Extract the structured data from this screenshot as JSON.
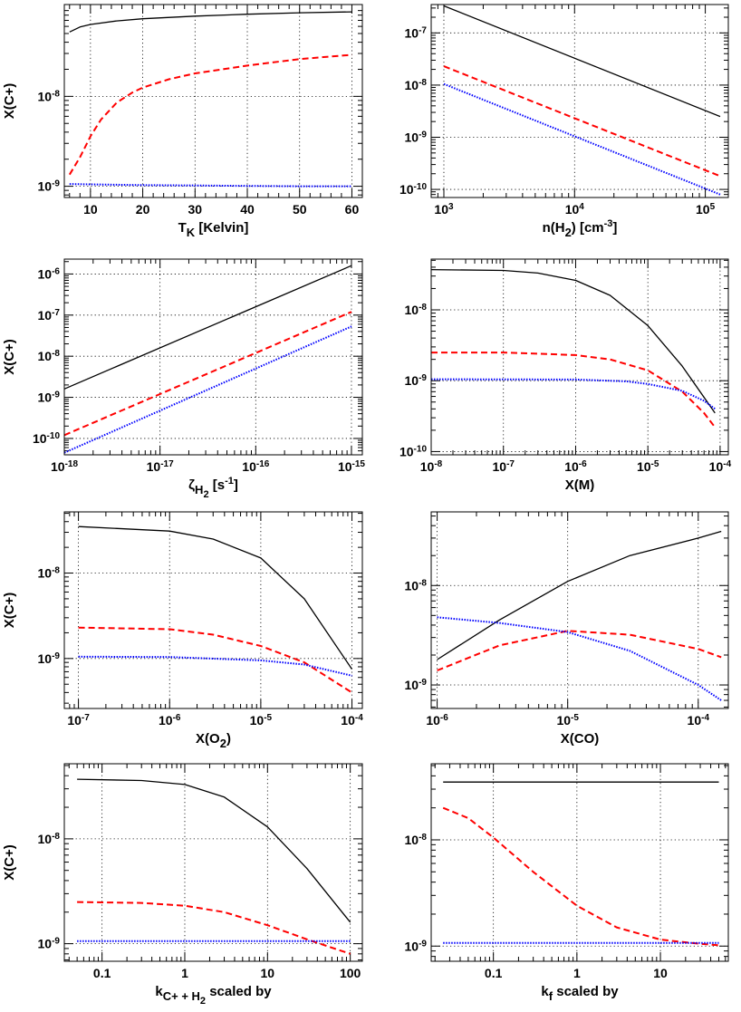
{
  "chart_data": [
    {
      "type": "line",
      "xscale": "linear",
      "yscale": "log",
      "xlim": [
        5,
        62
      ],
      "ylim": [
        7.5e-10,
        1.05e-07
      ],
      "xticks": [
        10,
        20,
        30,
        40,
        50,
        60
      ],
      "xtick_labels": [
        "10",
        "20",
        "30",
        "40",
        "50",
        "60"
      ],
      "yticks": [
        1e-09,
        1e-08
      ],
      "ytick_labels": [
        {
          "b": "10",
          "e": "-9"
        },
        {
          "b": "10",
          "e": "-8"
        }
      ],
      "xlabel": [
        {
          "t": "T"
        },
        {
          "t": "K",
          "sub": true
        },
        {
          "t": " [Kelvin]"
        }
      ],
      "ylabel": "X(C+)",
      "series": [
        {
          "color": "#000000",
          "dash": "solid",
          "x": [
            6,
            8,
            10,
            15,
            20,
            30,
            40,
            50,
            60
          ],
          "y": [
            5.2e-08,
            5.9e-08,
            6.3e-08,
            6.9e-08,
            7.3e-08,
            7.8e-08,
            8.2e-08,
            8.5e-08,
            8.7e-08
          ]
        },
        {
          "color": "#ff0000",
          "dash": "dashed",
          "x": [
            6,
            8,
            10,
            12,
            15,
            18,
            20,
            25,
            30,
            40,
            50,
            60
          ],
          "y": [
            1.35e-09,
            2.1e-09,
            3.6e-09,
            5.5e-09,
            8.5e-09,
            1.1e-08,
            1.25e-08,
            1.55e-08,
            1.8e-08,
            2.2e-08,
            2.6e-08,
            2.9e-08
          ]
        },
        {
          "color": "#0000ff",
          "dash": "dotted",
          "x": [
            6,
            10,
            20,
            30,
            40,
            50,
            60
          ],
          "y": [
            1.06e-09,
            1.05e-09,
            1.03e-09,
            1.02e-09,
            1.01e-09,
            1e-09,
            1e-09
          ]
        }
      ]
    },
    {
      "type": "line",
      "xscale": "log",
      "yscale": "log",
      "xlim": [
        800,
        150000
      ],
      "ylim": [
        7e-11,
        3.5e-07
      ],
      "xticks": [
        1000,
        10000,
        100000
      ],
      "xtick_labels": [
        {
          "b": "10",
          "e": "3"
        },
        {
          "b": "10",
          "e": "4"
        },
        {
          "b": "10",
          "e": "5"
        }
      ],
      "yticks": [
        1e-10,
        1e-09,
        1e-08,
        1e-07
      ],
      "ytick_labels": [
        {
          "b": "10",
          "e": "-10"
        },
        {
          "b": "10",
          "e": "-9"
        },
        {
          "b": "10",
          "e": "-8"
        },
        {
          "b": "10",
          "e": "-7"
        }
      ],
      "xlabel": [
        {
          "t": "n(H"
        },
        {
          "t": "2",
          "sub": true
        },
        {
          "t": ") [cm"
        },
        {
          "t": "-3",
          "sup": true
        },
        {
          "t": "]"
        }
      ],
      "ylabel": "",
      "series": [
        {
          "color": "#000000",
          "dash": "solid",
          "x": [
            1000,
            130000
          ],
          "y": [
            3.3e-07,
            2.5e-09
          ]
        },
        {
          "color": "#ff0000",
          "dash": "dashed",
          "x": [
            1000,
            130000
          ],
          "y": [
            2.3e-08,
            1.8e-10
          ]
        },
        {
          "color": "#0000ff",
          "dash": "dotted",
          "x": [
            1000,
            130000
          ],
          "y": [
            1.05e-08,
            8e-11
          ]
        }
      ]
    },
    {
      "type": "line",
      "xscale": "log",
      "yscale": "log",
      "xlim": [
        1e-18,
        1.3e-15
      ],
      "ylim": [
        4e-11,
        2.3e-06
      ],
      "xticks": [
        1e-18,
        1e-17,
        1e-16,
        1e-15
      ],
      "xtick_labels": [
        {
          "b": "10",
          "e": "-18"
        },
        {
          "b": "10",
          "e": "-17"
        },
        {
          "b": "10",
          "e": "-16"
        },
        {
          "b": "10",
          "e": "-15"
        }
      ],
      "yticks": [
        1e-10,
        1e-09,
        1e-08,
        1e-07,
        1e-06
      ],
      "ytick_labels": [
        {
          "b": "10",
          "e": "-10"
        },
        {
          "b": "10",
          "e": "-9"
        },
        {
          "b": "10",
          "e": "-8"
        },
        {
          "b": "10",
          "e": "-7"
        },
        {
          "b": "10",
          "e": "-6"
        }
      ],
      "xlabel": [
        {
          "t": "ζ"
        },
        {
          "t": "H",
          "sub": true
        },
        {
          "t": "2",
          "subsub": true
        },
        {
          "t": " [s"
        },
        {
          "t": "-1",
          "sup": true
        },
        {
          "t": "]"
        }
      ],
      "ylabel": "X(C+)",
      "series": [
        {
          "color": "#000000",
          "dash": "solid",
          "x": [
            1e-18,
            1e-15
          ],
          "y": [
            1.6e-09,
            1.6e-06
          ]
        },
        {
          "color": "#ff0000",
          "dash": "dashed",
          "x": [
            1e-18,
            1e-15
          ],
          "y": [
            1.2e-10,
            1.2e-07
          ]
        },
        {
          "color": "#0000ff",
          "dash": "dotted",
          "x": [
            1e-18,
            1e-15
          ],
          "y": [
            4.5e-11,
            5.3e-08
          ]
        }
      ]
    },
    {
      "type": "line",
      "xscale": "log",
      "yscale": "log",
      "xlim": [
        1e-08,
        0.00013
      ],
      "ylim": [
        9e-11,
        5.2e-08
      ],
      "xticks": [
        1e-08,
        1e-07,
        1e-06,
        1e-05,
        0.0001
      ],
      "xtick_labels": [
        {
          "b": "10",
          "e": "-8"
        },
        {
          "b": "10",
          "e": "-7"
        },
        {
          "b": "10",
          "e": "-6"
        },
        {
          "b": "10",
          "e": "-5"
        },
        {
          "b": "10",
          "e": "-4"
        }
      ],
      "yticks": [
        1e-10,
        1e-09,
        1e-08
      ],
      "ytick_labels": [
        {
          "b": "10",
          "e": "-10"
        },
        {
          "b": "10",
          "e": "-9"
        },
        {
          "b": "10",
          "e": "-8"
        }
      ],
      "xlabel": [
        {
          "t": "X(M)"
        }
      ],
      "ylabel": "",
      "series": [
        {
          "color": "#000000",
          "dash": "solid",
          "x": [
            1e-08,
            1e-07,
            3e-07,
            1e-06,
            3e-06,
            1e-05,
            3e-05,
            8.5e-05
          ],
          "y": [
            3.7e-08,
            3.6e-08,
            3.3e-08,
            2.6e-08,
            1.6e-08,
            6e-09,
            1.6e-09,
            3.5e-10
          ]
        },
        {
          "color": "#ff0000",
          "dash": "dashed",
          "x": [
            1e-08,
            1e-07,
            1e-06,
            3e-06,
            1e-05,
            3e-05,
            6e-05,
            8.5e-05
          ],
          "y": [
            2.5e-09,
            2.5e-09,
            2.3e-09,
            2e-09,
            1.4e-09,
            7e-10,
            3.5e-10,
            2.2e-10
          ]
        },
        {
          "color": "#0000ff",
          "dash": "dotted",
          "x": [
            1e-08,
            1e-06,
            5e-06,
            1e-05,
            3e-05,
            6e-05,
            8.5e-05
          ],
          "y": [
            1.05e-09,
            1.04e-09,
            9.8e-10,
            9e-10,
            7.2e-10,
            5.2e-10,
            4e-10
          ]
        }
      ]
    },
    {
      "type": "line",
      "xscale": "log",
      "yscale": "log",
      "xlim": [
        7e-08,
        0.00013
      ],
      "ylim": [
        2.6e-10,
        5.2e-08
      ],
      "xticks": [
        1e-07,
        1e-06,
        1e-05,
        0.0001
      ],
      "xtick_labels": [
        {
          "b": "10",
          "e": "-7"
        },
        {
          "b": "10",
          "e": "-6"
        },
        {
          "b": "10",
          "e": "-5"
        },
        {
          "b": "10",
          "e": "-4"
        }
      ],
      "yticks": [
        1e-09,
        1e-08
      ],
      "ytick_labels": [
        {
          "b": "10",
          "e": "-9"
        },
        {
          "b": "10",
          "e": "-8"
        }
      ],
      "xlabel": [
        {
          "t": "X(O"
        },
        {
          "t": "2",
          "sub": true
        },
        {
          "t": ")"
        }
      ],
      "ylabel": "X(C+)",
      "series": [
        {
          "color": "#000000",
          "dash": "solid",
          "x": [
            1e-07,
            1e-06,
            3e-06,
            1e-05,
            3e-05,
            0.0001
          ],
          "y": [
            3.5e-08,
            3.1e-08,
            2.5e-08,
            1.5e-08,
            5e-09,
            7.5e-10
          ]
        },
        {
          "color": "#ff0000",
          "dash": "dashed",
          "x": [
            1e-07,
            1e-06,
            3e-06,
            1e-05,
            3e-05,
            0.0001
          ],
          "y": [
            2.3e-09,
            2.2e-09,
            1.9e-09,
            1.4e-09,
            9e-10,
            4e-10
          ]
        },
        {
          "color": "#0000ff",
          "dash": "dotted",
          "x": [
            1e-07,
            1e-06,
            1e-05,
            3e-05,
            0.0001
          ],
          "y": [
            1.05e-09,
            1.04e-09,
            9.5e-10,
            8.5e-10,
            6.3e-10
          ]
        }
      ]
    },
    {
      "type": "line",
      "xscale": "log",
      "yscale": "log",
      "xlim": [
        9e-07,
        0.00017
      ],
      "ylim": [
        5.8e-10,
        5.5e-08
      ],
      "xticks": [
        1e-06,
        1e-05,
        0.0001
      ],
      "xtick_labels": [
        {
          "b": "10",
          "e": "-6"
        },
        {
          "b": "10",
          "e": "-5"
        },
        {
          "b": "10",
          "e": "-4"
        }
      ],
      "yticks": [
        1e-09,
        1e-08
      ],
      "ytick_labels": [
        {
          "b": "10",
          "e": "-9"
        },
        {
          "b": "10",
          "e": "-8"
        }
      ],
      "xlabel": [
        {
          "t": "X(CO)"
        }
      ],
      "ylabel": "",
      "series": [
        {
          "color": "#000000",
          "dash": "solid",
          "x": [
            1e-06,
            3e-06,
            1e-05,
            3e-05,
            0.0001,
            0.00015
          ],
          "y": [
            1.8e-09,
            4.5e-09,
            1.1e-08,
            2e-08,
            3e-08,
            3.5e-08
          ]
        },
        {
          "color": "#ff0000",
          "dash": "dashed",
          "x": [
            1e-06,
            3e-06,
            1e-05,
            3e-05,
            0.0001,
            0.00015
          ],
          "y": [
            1.4e-09,
            2.5e-09,
            3.5e-09,
            3.2e-09,
            2.3e-09,
            1.9e-09
          ]
        },
        {
          "color": "#0000ff",
          "dash": "dotted",
          "x": [
            1e-06,
            3e-06,
            1e-05,
            3e-05,
            0.0001,
            0.00015
          ],
          "y": [
            4.8e-09,
            4.2e-09,
            3.4e-09,
            2.2e-09,
            1e-09,
            7e-10
          ]
        }
      ]
    },
    {
      "type": "line",
      "xscale": "log",
      "yscale": "log",
      "xlim": [
        0.035,
        140
      ],
      "ylim": [
        6.8e-10,
        5.2e-08
      ],
      "xticks": [
        0.1,
        1,
        10,
        100
      ],
      "xtick_labels": [
        "0.1",
        "1",
        "10",
        "100"
      ],
      "yticks": [
        1e-09,
        1e-08
      ],
      "ytick_labels": [
        {
          "b": "10",
          "e": "-9"
        },
        {
          "b": "10",
          "e": "-8"
        }
      ],
      "xlabel": [
        {
          "t": "k"
        },
        {
          "t": "C+ + H",
          "sub": true
        },
        {
          "t": "2",
          "subsub": true
        },
        {
          "t": " scaled by"
        }
      ],
      "ylabel": "X(C+)",
      "series": [
        {
          "color": "#000000",
          "dash": "solid",
          "x": [
            0.05,
            0.3,
            1,
            3,
            10,
            30,
            100
          ],
          "y": [
            3.7e-08,
            3.6e-08,
            3.3e-08,
            2.5e-08,
            1.3e-08,
            5.2e-09,
            1.6e-09
          ]
        },
        {
          "color": "#ff0000",
          "dash": "dashed",
          "x": [
            0.05,
            0.3,
            1,
            3,
            10,
            30,
            100
          ],
          "y": [
            2.5e-09,
            2.45e-09,
            2.3e-09,
            2e-09,
            1.5e-09,
            1.1e-09,
            8e-10
          ]
        },
        {
          "color": "#0000ff",
          "dash": "dotted",
          "x": [
            0.05,
            100
          ],
          "y": [
            1.06e-09,
            1.06e-09
          ]
        }
      ]
    },
    {
      "type": "line",
      "xscale": "log",
      "yscale": "log",
      "xlim": [
        0.018,
        65
      ],
      "ylim": [
        7.2e-10,
        5.2e-08
      ],
      "xticks": [
        0.1,
        1,
        10
      ],
      "xtick_labels": [
        "0.1",
        "1",
        "10"
      ],
      "yticks": [
        1e-09,
        1e-08
      ],
      "ytick_labels": [
        {
          "b": "10",
          "e": "-9"
        },
        {
          "b": "10",
          "e": "-8"
        }
      ],
      "xlabel": [
        {
          "t": "k"
        },
        {
          "t": "f",
          "sub": true
        },
        {
          "t": " scaled by"
        }
      ],
      "ylabel": "",
      "series": [
        {
          "color": "#000000",
          "dash": "solid",
          "x": [
            0.025,
            50
          ],
          "y": [
            3.5e-08,
            3.5e-08
          ]
        },
        {
          "color": "#ff0000",
          "dash": "dashed",
          "x": [
            0.025,
            0.05,
            0.1,
            0.3,
            1,
            3,
            10,
            30,
            50
          ],
          "y": [
            2e-08,
            1.6e-08,
            1.05e-08,
            5e-09,
            2.4e-09,
            1.5e-09,
            1.15e-09,
            1.05e-09,
            1.02e-09
          ]
        },
        {
          "color": "#0000ff",
          "dash": "dotted",
          "x": [
            0.025,
            50
          ],
          "y": [
            1.07e-09,
            1.07e-09
          ]
        }
      ]
    }
  ]
}
